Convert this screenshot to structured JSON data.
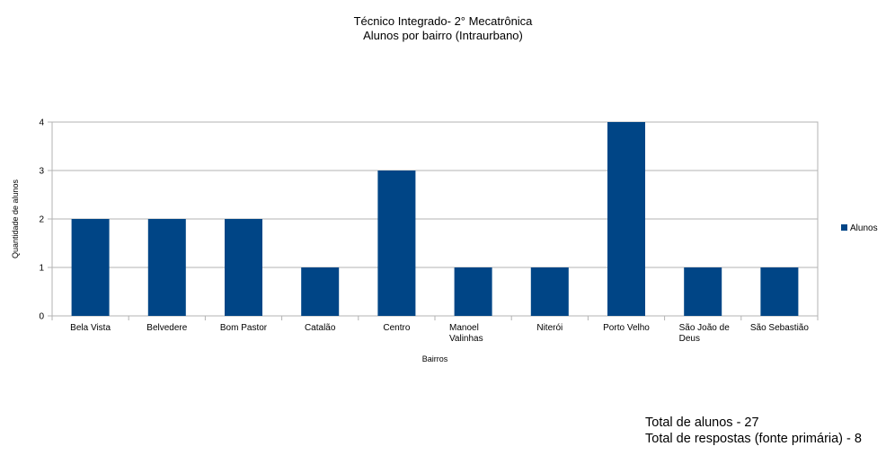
{
  "chart_data": {
    "type": "bar",
    "title": "Técnico Integrado- 2° Mecatrônica",
    "subtitle": "Alunos por bairro (Intraurbano)",
    "xlabel": "Bairros",
    "ylabel": "Quantidade de alunos",
    "categories": [
      "Bela Vista",
      "Belvedere",
      "Bom Pastor",
      "Catalão",
      "Centro",
      "Manoel Valinhas",
      "Niterói",
      "Porto Velho",
      "São João de Deus",
      "São Sebastião"
    ],
    "series": [
      {
        "name": "Alunos",
        "values": [
          2,
          2,
          2,
          1,
          3,
          1,
          1,
          4,
          1,
          1
        ],
        "color": "#004586"
      }
    ],
    "ylim": [
      0,
      4
    ],
    "yticks": [
      0,
      1,
      2,
      3,
      4
    ],
    "grid": true,
    "legend": "right"
  },
  "notes": {
    "total_alunos": "Total de alunos - 27",
    "total_respostas": "Total de respostas (fonte primária) - 8"
  }
}
